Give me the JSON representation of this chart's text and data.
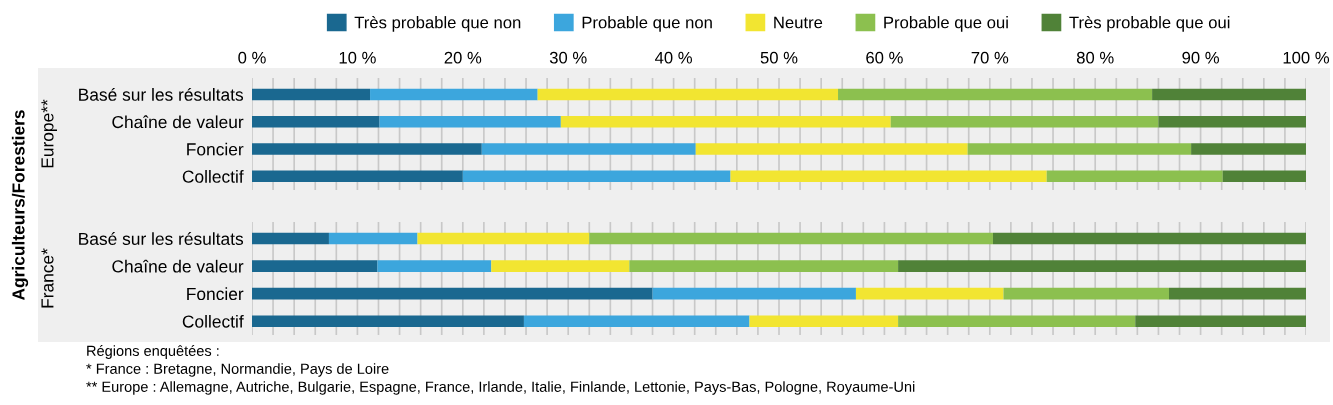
{
  "chart_data": [
    {
      "type": "bar",
      "orientation": "horizontal",
      "stacked": true,
      "ylabel": "Europe**",
      "legend": "top",
      "categories": [
        "Basé sur les résultats",
        "Chaîne de valeur",
        "Foncier",
        "Collectif"
      ],
      "series": [
        {
          "name": "Très probable que non",
          "color": "#1a6890",
          "values": [
            11.2,
            12.1,
            21.8,
            20.0
          ]
        },
        {
          "name": "Probable que non",
          "color": "#3ca6dd",
          "values": [
            15.9,
            17.2,
            20.3,
            25.4
          ]
        },
        {
          "name": "Neutre",
          "color": "#f2e531",
          "values": [
            28.5,
            31.3,
            25.8,
            30.0
          ]
        },
        {
          "name": "Probable que oui",
          "color": "#8cc04f",
          "values": [
            29.8,
            25.4,
            21.2,
            16.7
          ]
        },
        {
          "name": "Très probable que oui",
          "color": "#508238",
          "values": [
            14.6,
            14.0,
            10.9,
            7.9
          ]
        }
      ],
      "xlim": [
        0,
        100
      ],
      "xticks": [
        {
          "value": 0,
          "label": "0 %"
        },
        {
          "value": 2,
          "label": null
        },
        {
          "value": 4,
          "label": null
        },
        {
          "value": 6,
          "label": null
        },
        {
          "value": 8,
          "label": null
        },
        {
          "value": 10,
          "label": "10 %"
        },
        {
          "value": 12,
          "label": null
        },
        {
          "value": 14,
          "label": null
        },
        {
          "value": 16,
          "label": null
        },
        {
          "value": 18,
          "label": null
        },
        {
          "value": 20,
          "label": "20 %"
        },
        {
          "value": 22,
          "label": null
        },
        {
          "value": 24,
          "label": null
        },
        {
          "value": 26,
          "label": null
        },
        {
          "value": 28,
          "label": null
        },
        {
          "value": 30,
          "label": "30 %"
        },
        {
          "value": 32,
          "label": null
        },
        {
          "value": 34,
          "label": null
        },
        {
          "value": 36,
          "label": null
        },
        {
          "value": 38,
          "label": null
        },
        {
          "value": 40,
          "label": "40 %"
        },
        {
          "value": 42,
          "label": null
        },
        {
          "value": 44,
          "label": null
        },
        {
          "value": 46,
          "label": null
        },
        {
          "value": 48,
          "label": null
        },
        {
          "value": 50,
          "label": "50 %"
        },
        {
          "value": 52,
          "label": null
        },
        {
          "value": 54,
          "label": null
        },
        {
          "value": 56,
          "label": null
        },
        {
          "value": 58,
          "label": null
        },
        {
          "value": 60,
          "label": "60 %"
        },
        {
          "value": 62,
          "label": null
        },
        {
          "value": 64,
          "label": null
        },
        {
          "value": 66,
          "label": null
        },
        {
          "value": 68,
          "label": null
        },
        {
          "value": 70,
          "label": "70 %"
        },
        {
          "value": 72,
          "label": null
        },
        {
          "value": 74,
          "label": null
        },
        {
          "value": 76,
          "label": null
        },
        {
          "value": 78,
          "label": null
        },
        {
          "value": 80,
          "label": "80 %"
        },
        {
          "value": 82,
          "label": null
        },
        {
          "value": 84,
          "label": null
        },
        {
          "value": 86,
          "label": null
        },
        {
          "value": 88,
          "label": null
        },
        {
          "value": 90,
          "label": "90 %"
        },
        {
          "value": 92,
          "label": null
        },
        {
          "value": 94,
          "label": null
        },
        {
          "value": 96,
          "label": null
        },
        {
          "value": 98,
          "label": null
        },
        {
          "value": 100,
          "label": "100 %"
        }
      ],
      "grid": "x"
    },
    {
      "type": "bar",
      "orientation": "horizontal",
      "stacked": true,
      "ylabel": "France*",
      "tick_labels": "y",
      "categories": [
        "Basé sur les résultats",
        "Chaîne de valeur",
        "Foncier",
        "Collectif"
      ],
      "series": [
        {
          "color": "#1a6890",
          "values": [
            7.3,
            11.9,
            38.0,
            25.8
          ]
        },
        {
          "color": "#3ca6dd",
          "values": [
            8.4,
            10.8,
            19.3,
            21.4
          ]
        },
        {
          "color": "#f2e531",
          "values": [
            16.3,
            13.1,
            14.0,
            14.1
          ]
        },
        {
          "color": "#8cc04f",
          "values": [
            38.3,
            25.5,
            15.7,
            22.5
          ]
        },
        {
          "color": "#508238",
          "values": [
            29.7,
            38.7,
            13.0,
            16.2
          ]
        }
      ],
      "xlim": [
        0,
        100
      ],
      "xticks": [
        0,
        2,
        4,
        6,
        8,
        10,
        12,
        14,
        16,
        18,
        20,
        22,
        24,
        26,
        28,
        30,
        32,
        34,
        36,
        38,
        40,
        42,
        44,
        46,
        48,
        50,
        52,
        54,
        56,
        58,
        60,
        62,
        64,
        66,
        68,
        70,
        72,
        74,
        76,
        78,
        80,
        82,
        84,
        86,
        88,
        90,
        92,
        94,
        96,
        98,
        100
      ],
      "grid": "x",
      "annotations": [
        "Agriculteurs/Forestiers",
        "Régions enquêtées :",
        "* France : Bretagne, Normandie, Pays de Loire",
        "** Europe : Allemagne, Autriche, Bulgarie, Espagne, France, Irlande, Italie, Finlande, Lettonie, Pays-Bas, Pologne, Royaume-Uni"
      ]
    }
  ]
}
